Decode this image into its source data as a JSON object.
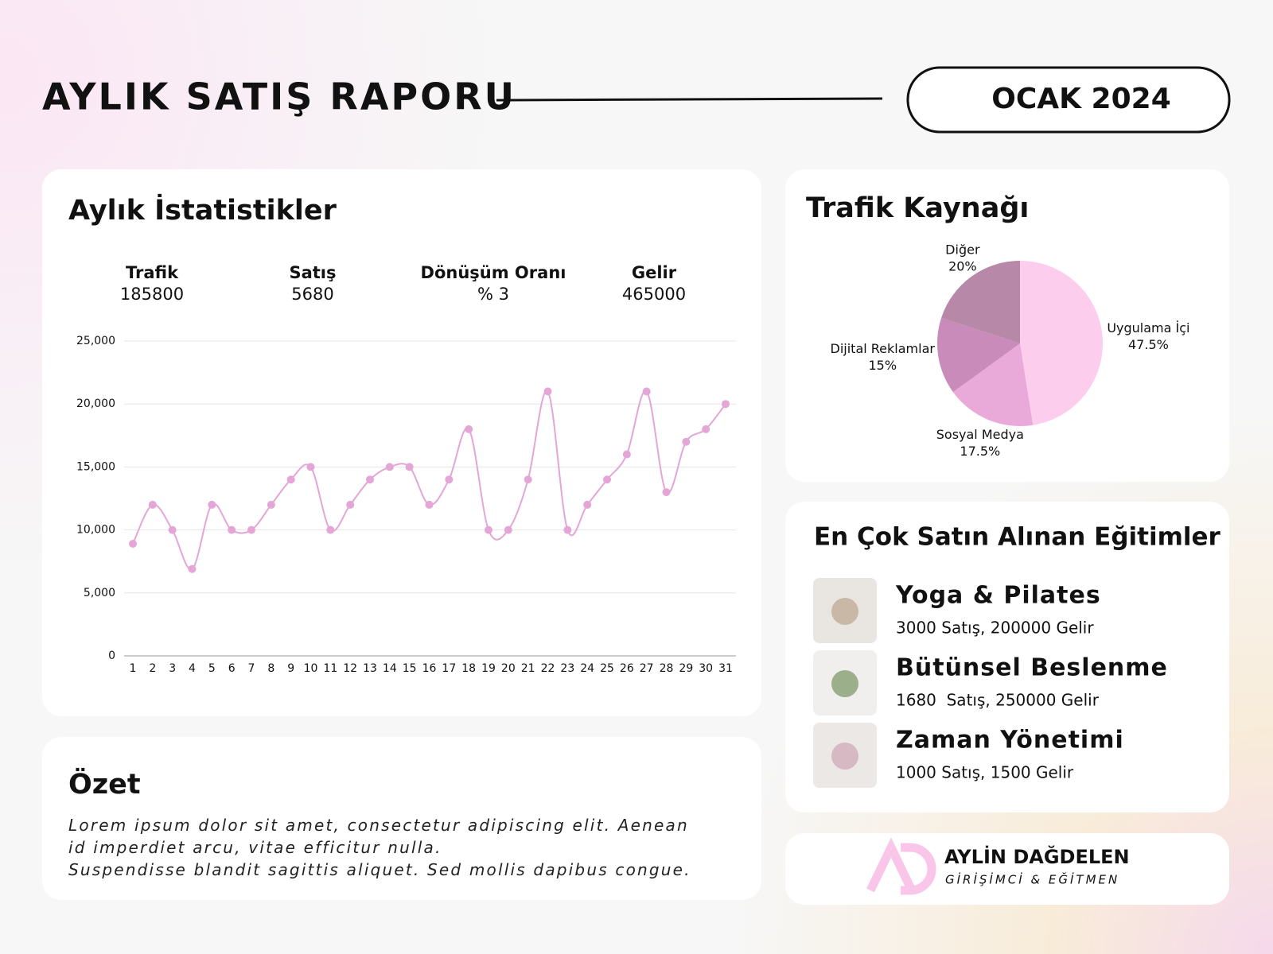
{
  "header": {
    "title": "AYLIK SATIŞ RAPORU",
    "period": "OCAK 2024"
  },
  "stats": {
    "title": "Aylık İstatistikler",
    "items": [
      {
        "label": "Trafik",
        "value": 185800
      },
      {
        "label": "Satış",
        "value": 5680
      },
      {
        "label": "Dönüşüm Oranı",
        "value": "% 3"
      },
      {
        "label": "Gelir",
        "value": 465000
      }
    ]
  },
  "chart_data": [
    {
      "type": "line",
      "color": "#e3a6d6",
      "x": [
        1,
        2,
        3,
        4,
        5,
        6,
        7,
        8,
        9,
        10,
        11,
        12,
        13,
        14,
        15,
        16,
        17,
        18,
        19,
        20,
        21,
        22,
        23,
        24,
        25,
        26,
        27,
        28,
        29,
        30,
        31
      ],
      "values": [
        8900,
        12000,
        10000,
        6900,
        12000,
        10000,
        10000,
        12000,
        14000,
        15000,
        10000,
        12000,
        14000,
        15000,
        15000,
        12000,
        14000,
        18000,
        10000,
        10000,
        14000,
        21000,
        10000,
        12000,
        14000,
        16000,
        21000,
        13000,
        17000,
        18000,
        20000
      ],
      "ylim": [
        0,
        25000
      ],
      "yticks": [
        0,
        {
          "value": 5000,
          "label": "5,000"
        },
        {
          "value": 10000,
          "label": "10,000"
        },
        {
          "value": 15000,
          "label": "15,000"
        },
        {
          "value": 20000,
          "label": "20,000"
        },
        {
          "value": 25000,
          "label": "25,000"
        }
      ],
      "grid": true
    },
    {
      "type": "pie",
      "title": "Trafik Kaynağı",
      "categories": [
        "Uygulama İçi",
        "Sosyal Medya",
        "Dijital Reklamlar",
        "Diğer"
      ],
      "values": [
        47.5,
        17.5,
        15,
        20
      ],
      "value_labels": [
        "47.5%",
        "17.5%",
        "15%",
        "20%"
      ],
      "colors": [
        "#fdcdee",
        "#e9aad9",
        "#c98bb9",
        "#b888a8"
      ]
    }
  ],
  "courses": {
    "title": "En Çok Satın Alınan Eğitimler",
    "items": [
      {
        "name": "Yoga & Pilates",
        "detail": "3000 Satış, 200000 Gelir"
      },
      {
        "name": "Bütünsel Beslenme",
        "detail": "1680  Satış, 250000 Gelir"
      },
      {
        "name": "Zaman Yönetimi",
        "detail": "1000 Satış, 1500 Gelir"
      }
    ]
  },
  "summary": {
    "title": "Özet",
    "paragraphs": [
      "Lorem ipsum dolor sit amet, consectetur adipiscing elit. Aenean id imperdiet arcu, vitae efficitur nulla.",
      "Suspendisse blandit sagittis aliquet. Sed mollis dapibus congue."
    ]
  },
  "footer": {
    "name": "AYLİN DAĞDELEN",
    "role": "GİRİŞİMCİ & EĞİTMEN"
  }
}
